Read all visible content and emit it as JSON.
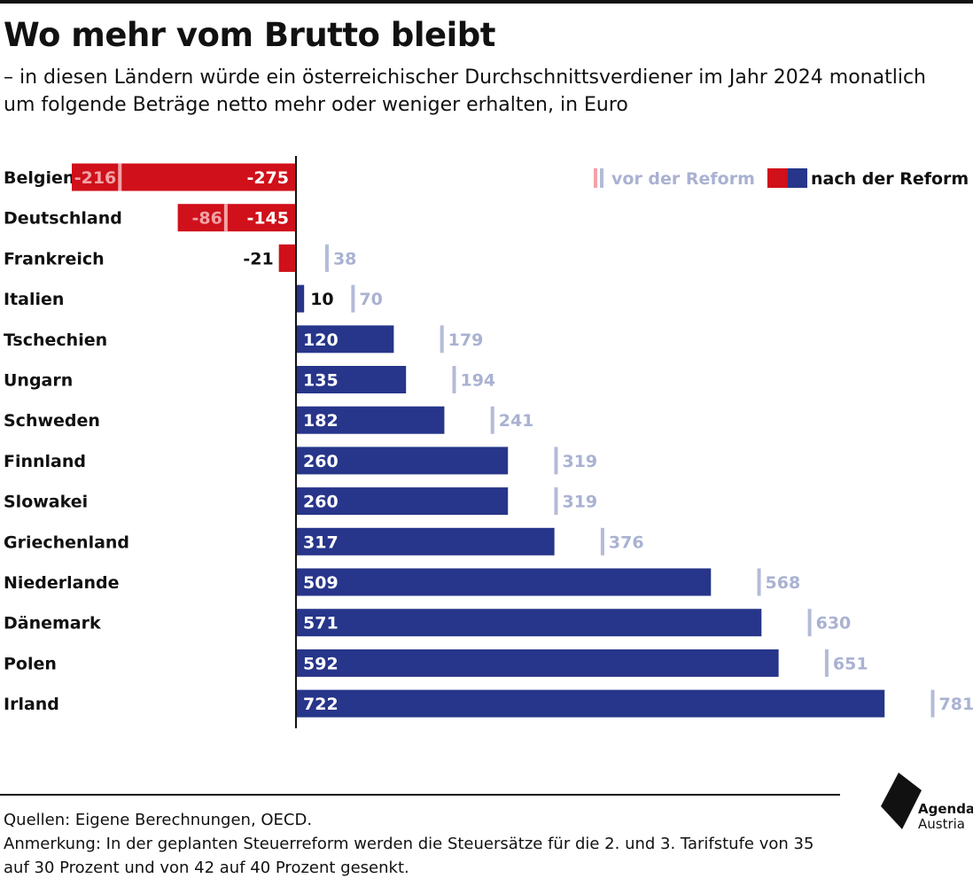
{
  "header": {
    "title": "Wo mehr vom Brutto bleibt",
    "subtitle": "– in diesen Ländern würde ein österreichischer Durchschnittsverdiener im Jahr 2024 monatlich um folgende Beträge netto mehr oder weniger erhalten, in Euro"
  },
  "legend": {
    "before_label": "vor der Reform",
    "after_label": "nach  der Reform"
  },
  "colors": {
    "positive": "#27358a",
    "negative": "#d0101a",
    "before_positive": "#b4bbd8",
    "before_negative": "#f0a3a7",
    "before_text": "#aab2d2",
    "text": "#111111"
  },
  "chart_data": {
    "type": "bar",
    "orientation": "horizontal",
    "categories": [
      "Belgien",
      "Deutschland",
      "Frankreich",
      "Italien",
      "Tschechien",
      "Ungarn",
      "Schweden",
      "Finnland",
      "Slowakei",
      "Griechenland",
      "Niederlande",
      "Dänemark",
      "Polen",
      "Irland"
    ],
    "series": [
      {
        "name": "vor der Reform",
        "values": [
          -216,
          -86,
          38,
          70,
          179,
          194,
          241,
          319,
          319,
          376,
          568,
          630,
          651,
          781
        ]
      },
      {
        "name": "nach der Reform",
        "values": [
          -275,
          -145,
          -21,
          10,
          120,
          135,
          182,
          260,
          260,
          317,
          509,
          571,
          592,
          722
        ]
      }
    ],
    "xlim": [
      -275,
      781
    ],
    "grid": false,
    "legend_position": "top-right"
  },
  "footer": {
    "sources": "Quellen: Eigene Berechnungen, OECD.",
    "note": "Anmerkung: In der geplanten Steuerreform werden die Steuersätze für die 2. und 3. Tarifstufe von 35 auf 30 Prozent und von 42 auf 40 Prozent gesenkt."
  },
  "logo": {
    "line1": "Agenda",
    "line2": "Austria"
  }
}
